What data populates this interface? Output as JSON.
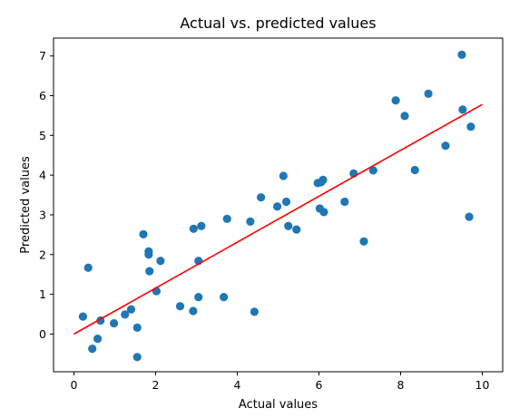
{
  "chart_data": {
    "type": "scatter",
    "title": "Actual vs. predicted values",
    "xlabel": "Actual values",
    "ylabel": "Predicted values",
    "xlim": [
      -0.5,
      10.5
    ],
    "ylim": [
      -0.95,
      7.45
    ],
    "xticks": [
      0,
      2,
      4,
      6,
      8,
      10
    ],
    "yticks": [
      0,
      1,
      2,
      3,
      4,
      5,
      6,
      7
    ],
    "grid": false,
    "colors": {
      "points": "#1f77b4",
      "line": "#ff0000"
    },
    "series": [
      {
        "type": "scatter",
        "points": [
          [
            0.22,
            0.44
          ],
          [
            0.35,
            1.67
          ],
          [
            0.45,
            -0.37
          ],
          [
            0.58,
            -0.12
          ],
          [
            0.65,
            0.34
          ],
          [
            0.98,
            0.27
          ],
          [
            1.25,
            0.49
          ],
          [
            1.4,
            0.62
          ],
          [
            1.55,
            0.16
          ],
          [
            1.55,
            -0.58
          ],
          [
            1.7,
            2.51
          ],
          [
            1.83,
            2.08
          ],
          [
            1.83,
            2.0
          ],
          [
            1.85,
            1.58
          ],
          [
            2.02,
            1.08
          ],
          [
            2.12,
            1.84
          ],
          [
            2.6,
            0.7
          ],
          [
            2.92,
            0.58
          ],
          [
            2.93,
            2.65
          ],
          [
            3.05,
            0.93
          ],
          [
            3.05,
            1.84
          ],
          [
            3.12,
            2.72
          ],
          [
            3.67,
            0.93
          ],
          [
            3.75,
            2.9
          ],
          [
            4.32,
            2.83
          ],
          [
            4.42,
            0.56
          ],
          [
            4.58,
            3.44
          ],
          [
            4.98,
            3.21
          ],
          [
            5.13,
            3.98
          ],
          [
            5.2,
            3.33
          ],
          [
            5.25,
            2.72
          ],
          [
            5.45,
            2.63
          ],
          [
            5.97,
            3.8
          ],
          [
            6.02,
            3.16
          ],
          [
            6.05,
            3.82
          ],
          [
            6.1,
            3.88
          ],
          [
            6.12,
            3.07
          ],
          [
            6.63,
            3.33
          ],
          [
            6.85,
            4.04
          ],
          [
            7.1,
            2.33
          ],
          [
            7.33,
            4.12
          ],
          [
            7.88,
            5.88
          ],
          [
            8.1,
            5.49
          ],
          [
            8.35,
            4.13
          ],
          [
            8.68,
            6.05
          ],
          [
            9.1,
            4.74
          ],
          [
            9.5,
            7.03
          ],
          [
            9.52,
            5.65
          ],
          [
            9.68,
            2.95
          ],
          [
            9.72,
            5.22
          ]
        ]
      },
      {
        "type": "line",
        "points": [
          [
            0,
            0.0
          ],
          [
            10,
            5.78
          ]
        ]
      }
    ]
  }
}
